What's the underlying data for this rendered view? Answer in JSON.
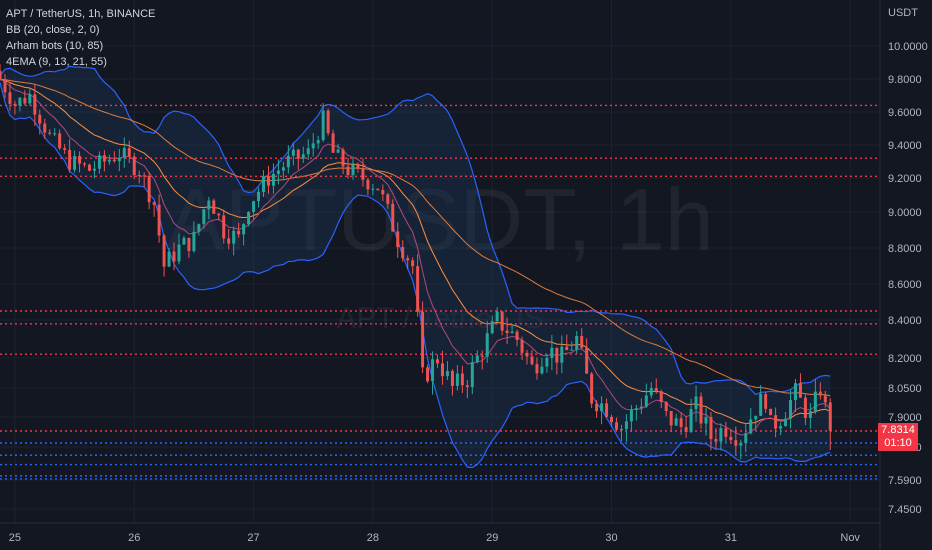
{
  "legend": {
    "symbol_line": "APT / TetherUS, 1h, BINANCE",
    "indicator_1": "BB (20, close, 2, 0)",
    "indicator_2": "Arham  bots (10, 85)",
    "indicator_3": "4EMA (9, 13, 21, 55)"
  },
  "watermark": {
    "big": "APTUSDT, 1h",
    "small": "APT / TetherUS"
  },
  "current_price": {
    "value": "7.8314",
    "countdown": "01:10"
  },
  "colors": {
    "background": "#131722",
    "grid": "#1e222d",
    "up": "#26a69a",
    "down": "#ef5350",
    "bb_line": "#2962ff",
    "bb_fill": "#1e3a5f",
    "ema": "#ff8f3c",
    "resistance": "#f23645",
    "support": "#2962ff",
    "axis_text": "#b2b5be",
    "price_badge": "#f23645"
  },
  "chart_data": {
    "type": "candlestick",
    "title": "APT / TetherUS, 1h, BINANCE",
    "xlabel": "",
    "ylabel": "USDT",
    "y_axis_label": "USDT",
    "ylim": [
      7.37,
      10.18
    ],
    "y_ticks": [
      "10.0000",
      "9.8000",
      "9.6000",
      "9.4000",
      "9.2000",
      "9.0000",
      "8.8000",
      "8.6000",
      "8.4000",
      "8.2000",
      "8.0500",
      "7.9000",
      "7.7500",
      "7.5900",
      "7.4500"
    ],
    "x_ticks": [
      {
        "label": "25",
        "t": 3
      },
      {
        "label": "26",
        "t": 27
      },
      {
        "label": "27",
        "t": 51
      },
      {
        "label": "28",
        "t": 75
      },
      {
        "label": "29",
        "t": 99
      },
      {
        "label": "30",
        "t": 123
      },
      {
        "label": "31",
        "t": 147
      },
      {
        "label": "Nov",
        "t": 171
      }
    ],
    "close_path": [
      [
        0,
        9.8
      ],
      [
        3,
        9.65
      ],
      [
        6,
        9.7
      ],
      [
        10,
        9.45
      ],
      [
        14,
        9.3
      ],
      [
        18,
        9.25
      ],
      [
        24,
        9.35
      ],
      [
        28,
        9.25
      ],
      [
        31,
        9.05
      ],
      [
        33,
        8.7
      ],
      [
        36,
        8.8
      ],
      [
        39,
        8.85
      ],
      [
        42,
        9.1
      ],
      [
        45,
        8.9
      ],
      [
        48,
        8.85
      ],
      [
        50,
        9.05
      ],
      [
        54,
        9.2
      ],
      [
        58,
        9.3
      ],
      [
        62,
        9.35
      ],
      [
        65,
        9.55
      ],
      [
        67,
        9.35
      ],
      [
        70,
        9.25
      ],
      [
        73,
        9.2
      ],
      [
        76,
        9.15
      ],
      [
        80,
        8.85
      ],
      [
        83,
        8.7
      ],
      [
        85,
        8.1
      ],
      [
        88,
        8.2
      ],
      [
        91,
        8.05
      ],
      [
        94,
        8.1
      ],
      [
        97,
        8.25
      ],
      [
        100,
        8.4
      ],
      [
        104,
        8.3
      ],
      [
        107,
        8.15
      ],
      [
        110,
        8.25
      ],
      [
        113,
        8.2
      ],
      [
        116,
        8.3
      ],
      [
        119,
        8.0
      ],
      [
        122,
        7.95
      ],
      [
        125,
        7.85
      ],
      [
        128,
        7.95
      ],
      [
        131,
        8.05
      ],
      [
        134,
        7.9
      ],
      [
        137,
        7.85
      ],
      [
        140,
        7.95
      ],
      [
        143,
        7.8
      ],
      [
        146,
        7.85
      ],
      [
        149,
        7.8
      ],
      [
        152,
        7.95
      ],
      [
        154,
        8.0
      ],
      [
        155,
        7.85
      ],
      [
        157,
        7.9
      ],
      [
        160,
        8.02
      ],
      [
        163,
        7.9
      ],
      [
        165,
        8.05
      ],
      [
        167,
        7.83
      ]
    ],
    "resistance_levels": [
      9.64,
      9.32,
      9.21,
      8.45,
      8.38,
      8.22,
      7.83
    ],
    "support_levels": [
      7.77,
      7.71,
      7.665,
      7.61,
      7.595
    ],
    "series": [
      {
        "name": "BB (20, close, 2, 0)",
        "type": "band"
      },
      {
        "name": "4EMA (9, 13, 21, 55)",
        "type": "lines"
      }
    ],
    "last_price": 7.8314,
    "grid": true,
    "legend_position": "top-left"
  }
}
